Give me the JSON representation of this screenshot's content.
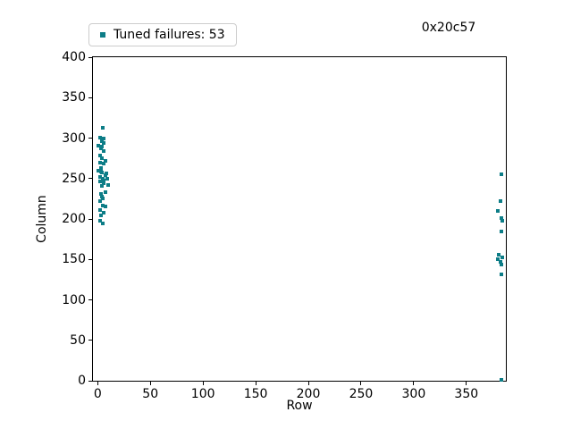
{
  "figure": {
    "background": "#ffffff",
    "title": "0x20c57"
  },
  "legend": {
    "label": "Tuned failures: 53",
    "marker_color": "#0d7d87",
    "border_color": "#cccccc",
    "position": "upper-left-above-axes"
  },
  "chart_data": {
    "type": "scatter",
    "title": "0x20c57",
    "xlabel": "Row",
    "ylabel": "Column",
    "xlim": [
      -4.5,
      387.5
    ],
    "ylim": [
      0,
      400
    ],
    "xticks": [
      0,
      50,
      100,
      150,
      200,
      250,
      300,
      350
    ],
    "yticks": [
      0,
      50,
      100,
      150,
      200,
      250,
      300,
      350,
      400
    ],
    "grid": false,
    "legend_position": "top-left outside axes",
    "series": [
      {
        "name": "Tuned failures: 53",
        "count": 53,
        "marker": "square",
        "color": "#0d7d87",
        "points": [
          [
            5,
            313
          ],
          [
            2,
            301
          ],
          [
            6,
            299
          ],
          [
            4,
            296
          ],
          [
            6,
            294
          ],
          [
            1,
            291
          ],
          [
            4,
            290
          ],
          [
            3,
            287
          ],
          [
            6,
            284
          ],
          [
            2,
            278
          ],
          [
            4,
            275
          ],
          [
            7,
            272
          ],
          [
            2,
            270
          ],
          [
            6,
            268
          ],
          [
            3,
            263
          ],
          [
            1,
            260
          ],
          [
            3,
            259
          ],
          [
            4,
            257
          ],
          [
            8,
            256
          ],
          [
            7,
            254
          ],
          [
            2,
            252
          ],
          [
            5,
            250
          ],
          [
            9,
            250
          ],
          [
            6,
            248
          ],
          [
            2,
            246
          ],
          [
            6,
            244
          ],
          [
            10,
            242
          ],
          [
            4,
            241
          ],
          [
            7,
            233
          ],
          [
            3,
            231
          ],
          [
            4,
            228
          ],
          [
            5,
            225
          ],
          [
            2,
            222
          ],
          [
            5,
            217
          ],
          [
            7,
            215
          ],
          [
            2,
            211
          ],
          [
            6,
            208
          ],
          [
            3,
            204
          ],
          [
            2,
            198
          ],
          [
            5,
            195
          ],
          [
            383,
            255
          ],
          [
            382,
            222
          ],
          [
            380,
            210
          ],
          [
            383,
            201
          ],
          [
            384,
            198
          ],
          [
            383,
            184
          ],
          [
            381,
            156
          ],
          [
            384,
            153
          ],
          [
            380,
            150
          ],
          [
            382,
            147
          ],
          [
            383,
            144
          ],
          [
            383,
            131
          ],
          [
            383,
            1
          ]
        ]
      }
    ]
  }
}
